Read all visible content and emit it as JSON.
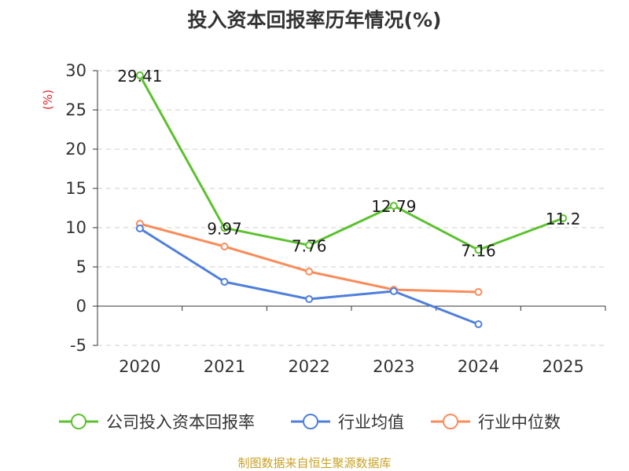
{
  "chart_data": {
    "type": "line",
    "title": "投入资本回报率历年情况(%)",
    "unit_label": "(%)",
    "categories": [
      "2020",
      "2021",
      "2022",
      "2023",
      "2024",
      "2025"
    ],
    "ylim": [
      -5,
      30
    ],
    "yticks": [
      30,
      25,
      20,
      15,
      10,
      5,
      0,
      -5
    ],
    "grid": true,
    "legend_position": "bottom",
    "series": [
      {
        "name": "公司投入资本回报率",
        "color": "#5cc12f",
        "values": [
          29.41,
          9.97,
          7.76,
          12.79,
          7.16,
          11.2
        ],
        "labels": [
          "29.41",
          "9.97",
          "7.76",
          "12.79",
          "7.16",
          "11.2"
        ]
      },
      {
        "name": "行业均值",
        "color": "#4f7fdb",
        "values": [
          9.9,
          3.1,
          0.9,
          1.9,
          -2.3,
          null
        ]
      },
      {
        "name": "行业中位数",
        "color": "#f98c5a",
        "values": [
          10.5,
          7.6,
          4.4,
          2.1,
          1.8,
          null
        ]
      }
    ]
  },
  "source_text": "制图数据来自恒生聚源数据库"
}
